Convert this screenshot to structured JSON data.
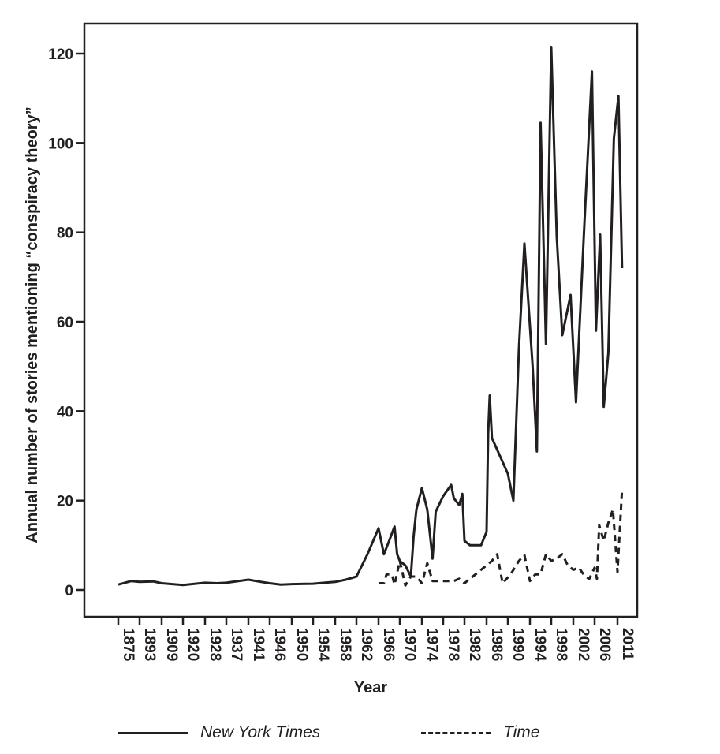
{
  "chart_data": {
    "type": "line",
    "title": "",
    "xlabel": "Year",
    "ylabel": "Annual number of stories mentioning “conspiracy theory”",
    "ylim": [
      -5,
      126
    ],
    "y_ticks": [
      0,
      20,
      40,
      60,
      80,
      100,
      120
    ],
    "x_ticks": [
      "1875",
      "1893",
      "1909",
      "1920",
      "1928",
      "1937",
      "1941",
      "1946",
      "1950",
      "1954",
      "1958",
      "1962",
      "1966",
      "1970",
      "1974",
      "1978",
      "1982",
      "1986",
      "1990",
      "1994",
      "1998",
      "2002",
      "2006",
      "2011"
    ],
    "series": [
      {
        "name": "New York Times",
        "style": "solid",
        "points": [
          [
            1875,
            1.2
          ],
          [
            1886,
            2.0
          ],
          [
            1893,
            1.8
          ],
          [
            1903,
            1.9
          ],
          [
            1909,
            1.5
          ],
          [
            1920,
            1.1
          ],
          [
            1928,
            1.6
          ],
          [
            1933,
            1.5
          ],
          [
            1937,
            1.6
          ],
          [
            1941,
            2.3
          ],
          [
            1944,
            1.8
          ],
          [
            1946,
            1.5
          ],
          [
            1948,
            1.2
          ],
          [
            1950,
            1.3
          ],
          [
            1954,
            1.4
          ],
          [
            1956,
            1.6
          ],
          [
            1958,
            1.8
          ],
          [
            1960,
            2.3
          ],
          [
            1962,
            3.0
          ],
          [
            1964,
            8.0
          ],
          [
            1966,
            13.8
          ],
          [
            1967,
            8.0
          ],
          [
            1968,
            11.0
          ],
          [
            1969,
            14.2
          ],
          [
            1969.5,
            8.0
          ],
          [
            1970,
            6.5
          ],
          [
            1971,
            5.5
          ],
          [
            1972,
            3.0
          ],
          [
            1972.5,
            12.0
          ],
          [
            1973,
            18.0
          ],
          [
            1974,
            22.8
          ],
          [
            1975,
            18.0
          ],
          [
            1975.6,
            11.5
          ],
          [
            1976,
            7.0
          ],
          [
            1976.6,
            17.5
          ],
          [
            1978,
            21.0
          ],
          [
            1979.5,
            23.5
          ],
          [
            1980,
            20.5
          ],
          [
            1981,
            19.0
          ],
          [
            1981.6,
            21.5
          ],
          [
            1982,
            11.0
          ],
          [
            1983,
            10.0
          ],
          [
            1984,
            10.0
          ],
          [
            1985,
            10.0
          ],
          [
            1986,
            13.0
          ],
          [
            1986.3,
            35.0
          ],
          [
            1986.6,
            43.5
          ],
          [
            1987,
            34.0
          ],
          [
            1990,
            26.0
          ],
          [
            1991,
            20.0
          ],
          [
            1992,
            54.0
          ],
          [
            1993,
            77.5
          ],
          [
            1994.5,
            50.0
          ],
          [
            1995.3,
            31.0
          ],
          [
            1996,
            104.5
          ],
          [
            1997,
            55.0
          ],
          [
            1998,
            121.5
          ],
          [
            1999,
            79.0
          ],
          [
            2000,
            57.0
          ],
          [
            2001.5,
            66.0
          ],
          [
            2002.5,
            42.0
          ],
          [
            2004,
            80.0
          ],
          [
            2005.5,
            116.0
          ],
          [
            2006.3,
            58.0
          ],
          [
            2007.2,
            79.5
          ],
          [
            2008,
            41.0
          ],
          [
            2009,
            53.0
          ],
          [
            2010.2,
            101.0
          ],
          [
            2011.2,
            110.5
          ],
          [
            2012,
            72.0
          ]
        ]
      },
      {
        "name": "Time",
        "style": "dashed",
        "points": [
          [
            1966,
            1.5
          ],
          [
            1967,
            1.5
          ],
          [
            1967.5,
            3.5
          ],
          [
            1968.5,
            3.5
          ],
          [
            1969,
            1.2
          ],
          [
            1970,
            6.5
          ],
          [
            1971,
            1.0
          ],
          [
            1972,
            3.0
          ],
          [
            1973,
            3.0
          ],
          [
            1974,
            1.5
          ],
          [
            1975,
            6.0
          ],
          [
            1976,
            2.0
          ],
          [
            1977,
            2.0
          ],
          [
            1980,
            2.0
          ],
          [
            1981,
            2.5
          ],
          [
            1982,
            1.5
          ],
          [
            1983,
            2.5
          ],
          [
            1984,
            3.5
          ],
          [
            1985,
            4.5
          ],
          [
            1987,
            6.5
          ],
          [
            1988,
            8.0
          ],
          [
            1989,
            1.5
          ],
          [
            1990.5,
            3.5
          ],
          [
            1992,
            6.5
          ],
          [
            1993,
            7.8
          ],
          [
            1994,
            2.0
          ],
          [
            1995,
            3.5
          ],
          [
            1996,
            3.5
          ],
          [
            1997,
            8.0
          ],
          [
            1998,
            6.5
          ],
          [
            1999,
            7.0
          ],
          [
            2000,
            8.0
          ],
          [
            2001,
            5.5
          ],
          [
            2002,
            4.5
          ],
          [
            2003,
            5.0
          ],
          [
            2003.6,
            4.0
          ],
          [
            2004.2,
            3.0
          ],
          [
            2005,
            2.5
          ],
          [
            2006,
            5.0
          ],
          [
            2006.5,
            2.5
          ],
          [
            2007,
            14.5
          ],
          [
            2008,
            11.0
          ],
          [
            2009,
            15.0
          ],
          [
            2010,
            18.0
          ],
          [
            2011,
            4.0
          ],
          [
            2012,
            22.5
          ]
        ]
      }
    ],
    "legend": "bottom"
  }
}
